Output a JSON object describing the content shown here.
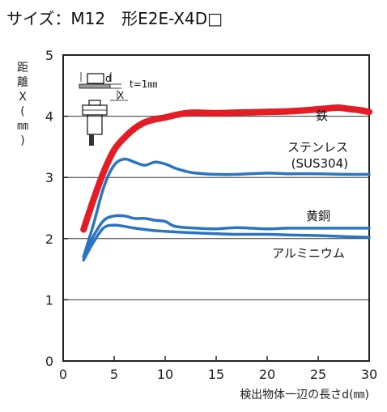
{
  "title": "サイズ：M12　形E2E-X4D□",
  "chart_data": {
    "type": "line",
    "xlabel": "検出物体一辺の長さd(㎜)",
    "ylabel_chars": [
      "距",
      "離",
      "X",
      "(",
      "㎜",
      ")"
    ],
    "xlim": [
      0,
      30
    ],
    "ylim": [
      0,
      5
    ],
    "x_ticks": [
      0,
      5,
      10,
      15,
      20,
      25,
      30
    ],
    "y_ticks": [
      0,
      1,
      2,
      3,
      4,
      5
    ],
    "grid": "horizontal",
    "series": [
      {
        "name": "鉄",
        "color": "#e21d25",
        "width": 8,
        "points": [
          [
            2,
            2.15
          ],
          [
            3,
            2.65
          ],
          [
            4,
            3.1
          ],
          [
            5,
            3.45
          ],
          [
            6,
            3.65
          ],
          [
            7,
            3.8
          ],
          [
            8,
            3.9
          ],
          [
            9,
            3.95
          ],
          [
            10,
            3.98
          ],
          [
            11,
            4.02
          ],
          [
            12,
            4.05
          ],
          [
            13,
            4.06
          ],
          [
            15,
            4.05
          ],
          [
            17,
            4.06
          ],
          [
            20,
            4.07
          ],
          [
            22,
            4.08
          ],
          [
            24,
            4.1
          ],
          [
            26,
            4.13
          ],
          [
            27,
            4.14
          ],
          [
            28,
            4.12
          ],
          [
            29,
            4.1
          ],
          [
            30,
            4.07
          ]
        ]
      },
      {
        "name": "ステンレス",
        "sublabel": "(SUS304)",
        "color": "#2b74c0",
        "width": 3.5,
        "points": [
          [
            2,
            1.7
          ],
          [
            3,
            2.25
          ],
          [
            4,
            2.85
          ],
          [
            5,
            3.2
          ],
          [
            6,
            3.3
          ],
          [
            7,
            3.25
          ],
          [
            8,
            3.2
          ],
          [
            9,
            3.25
          ],
          [
            10,
            3.22
          ],
          [
            11,
            3.15
          ],
          [
            12,
            3.1
          ],
          [
            13,
            3.07
          ],
          [
            15,
            3.05
          ],
          [
            17,
            3.05
          ],
          [
            20,
            3.07
          ],
          [
            22,
            3.06
          ],
          [
            25,
            3.06
          ],
          [
            28,
            3.05
          ],
          [
            30,
            3.05
          ]
        ]
      },
      {
        "name": "黄銅",
        "color": "#2b74c0",
        "width": 3.5,
        "points": [
          [
            2,
            1.7
          ],
          [
            3,
            2.05
          ],
          [
            4,
            2.3
          ],
          [
            5,
            2.37
          ],
          [
            6,
            2.37
          ],
          [
            7,
            2.33
          ],
          [
            8,
            2.33
          ],
          [
            9,
            2.3
          ],
          [
            10,
            2.28
          ],
          [
            11,
            2.2
          ],
          [
            13,
            2.17
          ],
          [
            15,
            2.16
          ],
          [
            17,
            2.18
          ],
          [
            20,
            2.16
          ],
          [
            22,
            2.17
          ],
          [
            25,
            2.17
          ],
          [
            28,
            2.17
          ],
          [
            30,
            2.17
          ]
        ]
      },
      {
        "name": "アルミニウム",
        "color": "#2b74c0",
        "width": 3.5,
        "points": [
          [
            2,
            1.65
          ],
          [
            3,
            1.95
          ],
          [
            4,
            2.18
          ],
          [
            5,
            2.22
          ],
          [
            6,
            2.2
          ],
          [
            7,
            2.17
          ],
          [
            8,
            2.15
          ],
          [
            9,
            2.13
          ],
          [
            10,
            2.12
          ],
          [
            12,
            2.1
          ],
          [
            15,
            2.08
          ],
          [
            17,
            2.07
          ],
          [
            20,
            2.07
          ],
          [
            22,
            2.06
          ],
          [
            25,
            2.05
          ],
          [
            28,
            2.03
          ],
          [
            30,
            2.02
          ]
        ]
      }
    ]
  },
  "inset": {
    "d_label": "d",
    "t_label": "t=1㎜",
    "x_label": "X"
  }
}
